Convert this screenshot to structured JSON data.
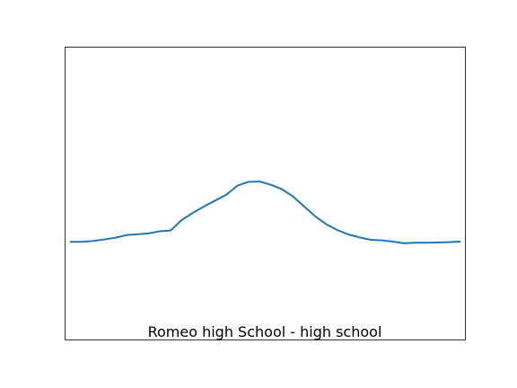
{
  "chart_data": {
    "type": "line",
    "title": "Romeo high School - high school",
    "xlabel": "",
    "ylabel": "",
    "axes_visible": false,
    "grid": false,
    "legend": "none",
    "xlim": [
      -0.5,
      35.5
    ],
    "ylim": [
      0,
      1
    ],
    "series": [
      {
        "color": "#1f77b4",
        "x": [
          0,
          1,
          2,
          3,
          4,
          5,
          6,
          7,
          8,
          9,
          10,
          11,
          12,
          13,
          14,
          15,
          16,
          17,
          18,
          19,
          20,
          21,
          22,
          23,
          24,
          25,
          26,
          27,
          28,
          29,
          30,
          31,
          32,
          33,
          34,
          35
        ],
        "values": [
          0.335,
          0.335,
          0.338,
          0.343,
          0.349,
          0.358,
          0.361,
          0.364,
          0.371,
          0.374,
          0.41,
          0.434,
          0.456,
          0.476,
          0.496,
          0.527,
          0.54,
          0.541,
          0.53,
          0.515,
          0.49,
          0.456,
          0.422,
          0.395,
          0.375,
          0.36,
          0.35,
          0.342,
          0.34,
          0.336,
          0.33,
          0.332,
          0.332,
          0.333,
          0.334,
          0.336
        ]
      }
    ]
  }
}
